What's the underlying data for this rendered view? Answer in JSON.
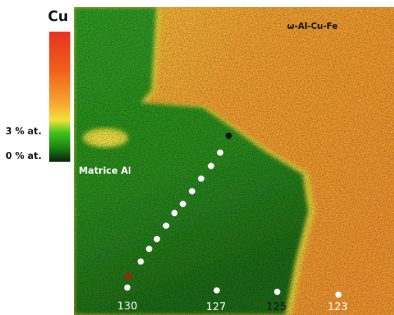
{
  "legend": {
    "title": "Cu",
    "ticks": [
      "3 % at.",
      "0 % at."
    ]
  },
  "phases": [
    "Matrice Al",
    "ω-Al-Cu-Fe"
  ],
  "points": [
    "130",
    "127",
    "125",
    "123"
  ]
}
